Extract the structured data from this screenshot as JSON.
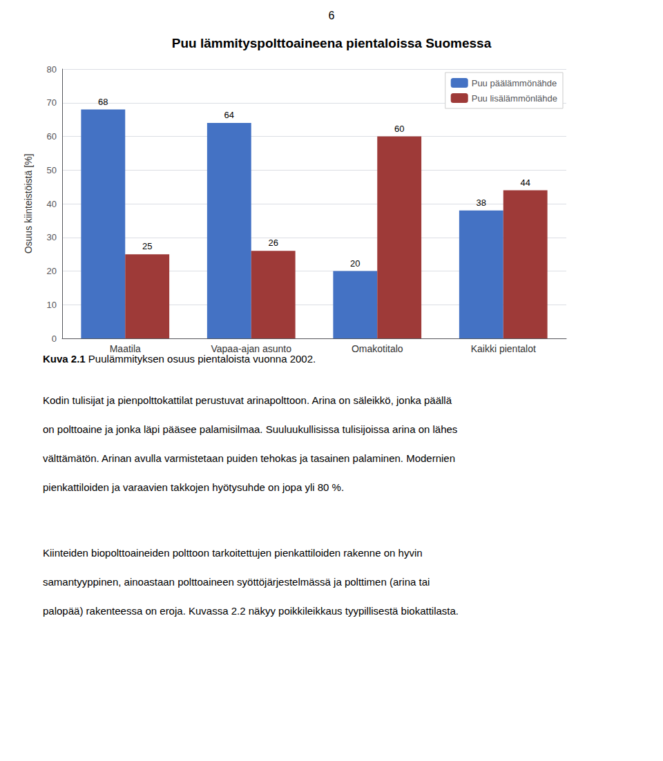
{
  "chart_data": {
    "type": "bar",
    "title": "Puu lämmityspolttoaineena pientaloissa Suomessa",
    "categories": [
      "Maatila",
      "Vapaa-ajan asunto",
      "Omakotitalo",
      "Kaikki pientalot"
    ],
    "series": [
      {
        "name": "Puu päälämmönähde",
        "color": "#4472C4",
        "values": [
          68,
          64,
          20,
          38
        ]
      },
      {
        "name": "Puu lisälämmönlähde",
        "color": "#9E3A38",
        "values": [
          25,
          26,
          60,
          44
        ]
      }
    ],
    "ylabel": "Osuus kiinteistöistä [%]",
    "ylim": [
      0,
      80
    ],
    "yticks": [
      0,
      10,
      20,
      30,
      40,
      50,
      60,
      70,
      80
    ],
    "grid": true,
    "legend": "upper right",
    "data_labels": true,
    "annotations": {
      "page_number": "6",
      "caption": [
        "Kuva 2.1",
        " Puulämmityksen osuus pientaloista vuonna 2002."
      ],
      "paragraphs": [
        [
          "Kodin tulisijat ja pienpolttokattilat perustuvat arinapolttoon. Arina on säleikkö, jonka päällä",
          "on polttoaine ja jonka läpi pääsee palamisilmaa. Suuluukullisissa tulisijoissa arina on lähes",
          "välttämätön. Arinan avulla varmistetaan puiden tehokas ja tasainen palaminen. Modernien",
          "pienkattiloiden ja varaavien takkojen hyötysuhde on jopa yli 80 %."
        ],
        [
          "Kiinteiden biopolttoaineiden polttoon tarkoitettujen pienkattiloiden rakenne on hyvin",
          "samantyyppinen, ainoastaan polttoaineen syöttöjärjestelmässä ja polttimen (arina tai",
          "palopää) rakenteessa on eroja. Kuvassa 2.2 näkyy poikkileikkaus tyypillisestä biokattilasta."
        ]
      ]
    }
  }
}
